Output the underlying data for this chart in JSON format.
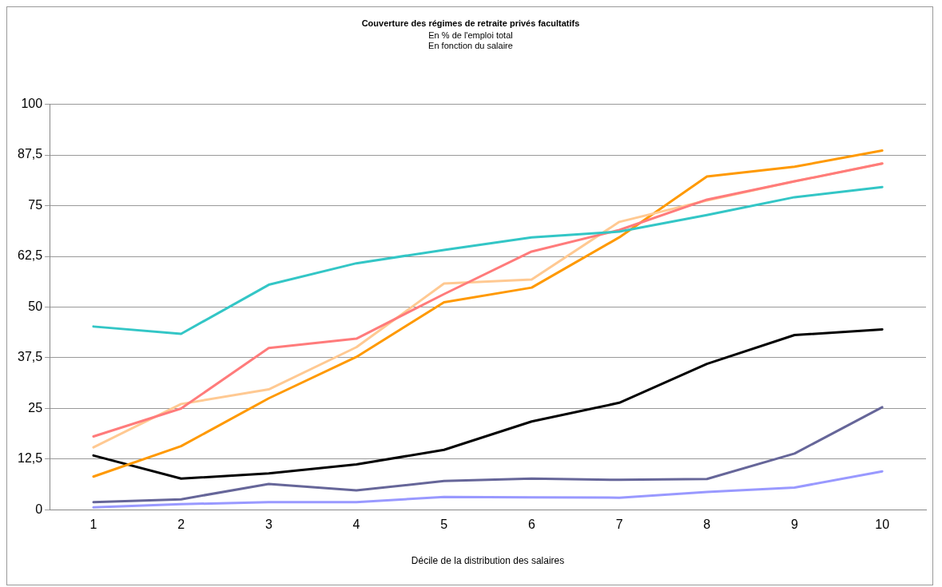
{
  "chart_data": {
    "type": "line",
    "title": "Couverture des régimes de retraite privés facultatifs",
    "subtitle": "En % de l'emploi total\nEn fonction du salaire",
    "xlabel": "Décile de la distribution des salaires",
    "categories": [
      "1",
      "2",
      "3",
      "4",
      "5",
      "6",
      "7",
      "8",
      "9",
      "10"
    ],
    "series": [
      {
        "color": "#33c6c6",
        "values": [
          45.2,
          43.4,
          55.5,
          60.8,
          64.1,
          67.2,
          68.6,
          72.7,
          77.1,
          79.6
        ]
      },
      {
        "color": "#ff7b7b",
        "values": [
          18.1,
          25.0,
          39.9,
          42.2,
          53.2,
          63.7,
          69.0,
          76.5,
          81.0,
          85.4
        ]
      },
      {
        "color": "#ffc992",
        "values": [
          15.4,
          26.1,
          29.7,
          40.1,
          55.8,
          56.8,
          71.0,
          76.3,
          81.0,
          85.4
        ]
      },
      {
        "color": "#ff9900",
        "values": [
          8.2,
          15.7,
          27.5,
          37.7,
          51.2,
          54.8,
          67.2,
          82.2,
          84.6,
          88.6
        ]
      },
      {
        "color": "#000000",
        "values": [
          13.4,
          7.7,
          9.0,
          11.2,
          14.8,
          21.8,
          26.4,
          36.0,
          43.1,
          44.5
        ]
      },
      {
        "color": "#666699",
        "values": [
          1.9,
          2.6,
          6.4,
          4.8,
          7.1,
          7.7,
          7.4,
          7.6,
          13.9,
          25.3
        ]
      },
      {
        "color": "#9999ff",
        "values": [
          0.6,
          1.4,
          1.9,
          1.9,
          3.2,
          3.1,
          3.0,
          4.4,
          5.5,
          9.5
        ]
      }
    ],
    "ylim": [
      0,
      100
    ],
    "yticks": [
      0,
      {
        "value": 12.5,
        "label": "12,5"
      },
      25,
      {
        "value": 37.5,
        "label": "37,5"
      },
      50,
      {
        "value": 62.5,
        "label": "62,5"
      },
      75,
      {
        "value": 87.5,
        "label": "87,5"
      },
      100
    ],
    "grid": "y",
    "legend": false,
    "marker": "none",
    "line_style": "solid"
  }
}
